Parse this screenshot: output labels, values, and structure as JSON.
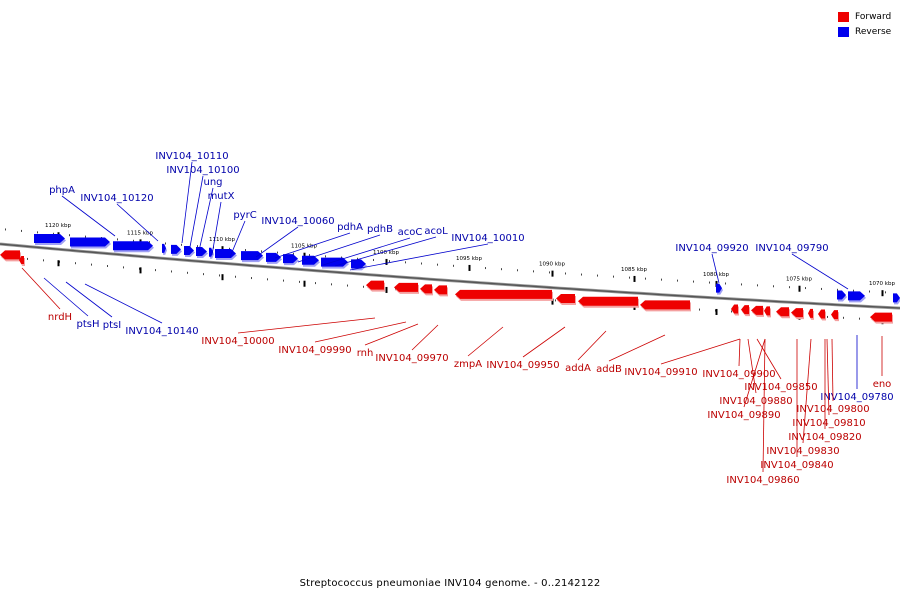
{
  "title": "Streptococcus pneumoniae INV104 genome. - 0..2142122",
  "legend": [
    {
      "label": "Forward",
      "color": "#ee0000"
    },
    {
      "label": "Reverse",
      "color": "#0000ee"
    }
  ],
  "ticks": [
    "1120 kbp",
    "1115 kbp",
    "1110 kbp",
    "1105 kbp",
    "1100 kbp",
    "1095 kbp",
    "1090 kbp",
    "1085 kbp",
    "1080 kbp",
    "1075 kbp",
    "1070 kbp"
  ],
  "reverse_genes": [
    "INV104_10110",
    "INV104_10100",
    "ung",
    "mutX",
    "phpA",
    "INV104_10120",
    "pyrC",
    "INV104_10060",
    "pdhA",
    "pdhB",
    "acoC",
    "acoL",
    "INV104_10010",
    "INV104_09920",
    "INV104_09790",
    "ptsH",
    "ptsI",
    "INV104_10140",
    "INV104_09780"
  ],
  "forward_genes": [
    "nrdH",
    "INV104_10000",
    "INV104_09990",
    "rnh",
    "INV104_09970",
    "zmpA",
    "INV104_09950",
    "addA",
    "addB",
    "INV104_09910",
    "INV104_09900",
    "INV104_09850",
    "INV104_09880",
    "INV104_09890",
    "INV104_09860",
    "INV104_09840",
    "INV104_09830",
    "INV104_09820",
    "INV104_09810",
    "INV104_09800",
    "eno"
  ]
}
